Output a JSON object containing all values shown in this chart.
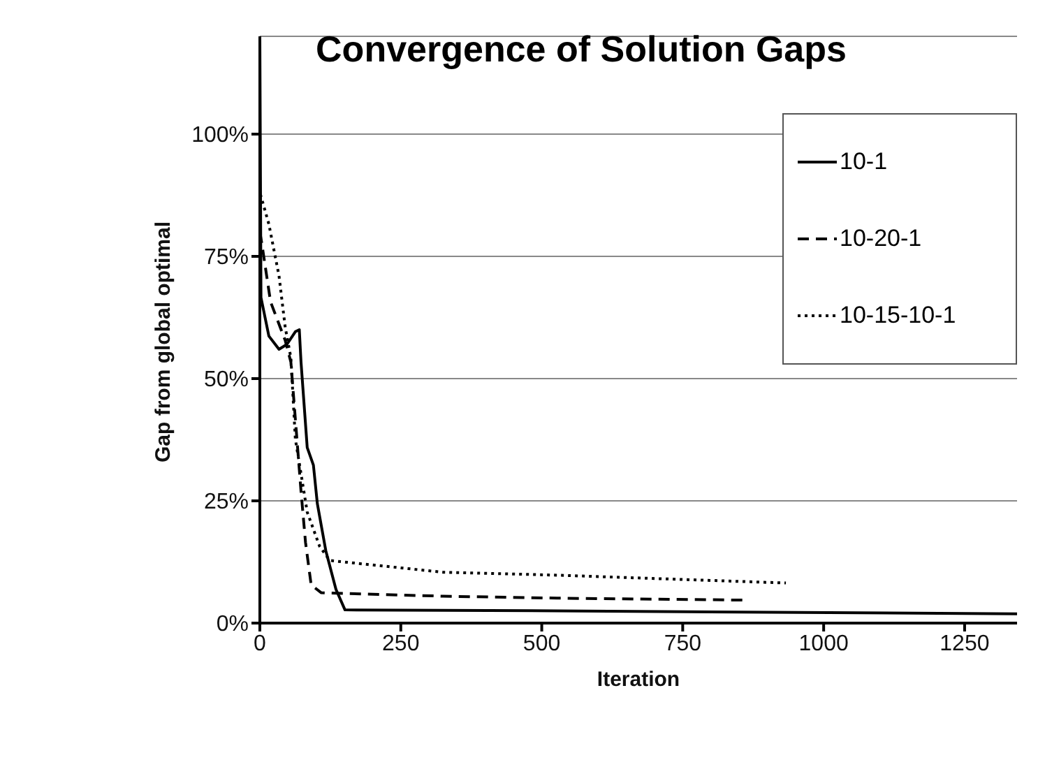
{
  "chart_data": {
    "type": "line",
    "title": "Convergence of Solution Gaps",
    "xlabel": "Iteration",
    "ylabel": "Gap from global optimal",
    "xlim": [
      0,
      1343
    ],
    "xticks": [
      0,
      250,
      500,
      750,
      1000,
      1250
    ],
    "ylim": [
      0,
      120
    ],
    "yticks": [
      {
        "value": 0,
        "label": "0%"
      },
      {
        "value": 25,
        "label": "25%"
      },
      {
        "value": 50,
        "label": "50%"
      },
      {
        "value": 75,
        "label": "75%"
      },
      {
        "value": 100,
        "label": "100%"
      }
    ],
    "grid": "y",
    "legend": "top right",
    "marker": "none",
    "series": [
      {
        "name": "10-1",
        "color": "#000000",
        "line_style": "solid",
        "x": [
          0,
          2,
          16,
          34,
          48,
          63,
          70,
          73,
          84,
          95,
          102,
          117,
          135,
          151,
          527,
          1343
        ],
        "values": [
          120,
          66.6,
          58.7,
          56,
          57,
          59.6,
          60,
          53.4,
          35.9,
          32.3,
          24.4,
          14.8,
          6.9,
          2.7,
          2.5,
          1.9
        ]
      },
      {
        "name": "10-20-1",
        "color": "#000000",
        "line_style": "dashed",
        "x": [
          0,
          3,
          19,
          45,
          55,
          73,
          81,
          91,
          109,
          325,
          527,
          861
        ],
        "values": [
          80,
          78,
          65.7,
          57.8,
          53.4,
          27,
          16.5,
          7.8,
          6.2,
          5.5,
          5.1,
          4.7
        ]
      },
      {
        "name": "10-15-10-1",
        "color": "#000000",
        "line_style": "dotted",
        "x": [
          1,
          16,
          34,
          45,
          55,
          63,
          73,
          84,
          106,
          124,
          325,
          527,
          933
        ],
        "values": [
          87.7,
          81.6,
          71,
          60.5,
          54.3,
          37.6,
          30.6,
          22.7,
          15.7,
          12.8,
          10.4,
          9.8,
          8.2
        ]
      }
    ]
  }
}
